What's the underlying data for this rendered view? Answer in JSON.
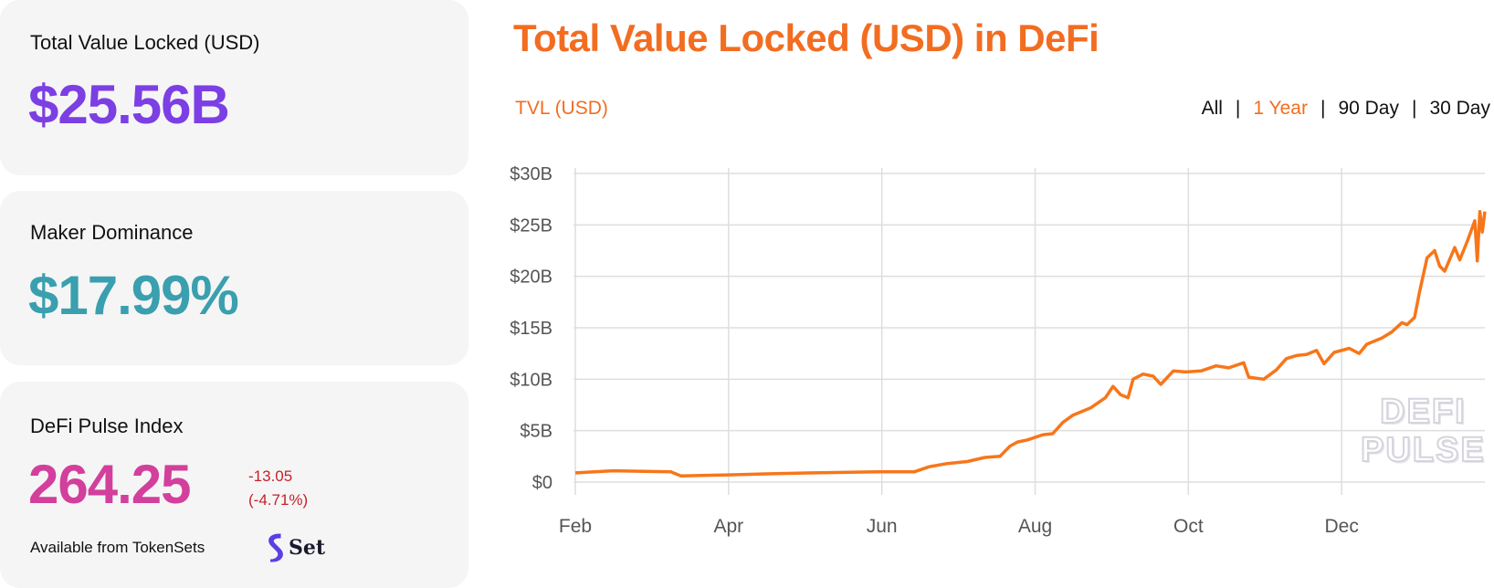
{
  "cards": {
    "tvl": {
      "label": "Total Value Locked (USD)",
      "value": "$25.56B",
      "color": "#7b3fe4"
    },
    "maker": {
      "label": "Maker Dominance",
      "value": "$17.99%",
      "color": "#3a9fae"
    },
    "dpi": {
      "label": "DeFi Pulse Index",
      "value": "264.25",
      "change": "-13.05",
      "change_pct": "(-4.71%)",
      "color": "#d23f9c",
      "available": "Available from TokenSets",
      "set_logo": "Set"
    }
  },
  "header": {
    "title": "Total Value Locked (USD) in DeFi",
    "legend": "TVL (USD)",
    "ranges": [
      "All",
      "1 Year",
      "90 Day",
      "30 Day"
    ],
    "active_range": "1 Year",
    "separator": "|"
  },
  "watermark": [
    "DEFI",
    "PULSE"
  ],
  "chart_data": {
    "type": "line",
    "title": "Total Value Locked (USD) in DeFi",
    "ylabel": "TVL (USD)",
    "xlabel": "",
    "x_unit": "days since Feb 1",
    "xlim": [
      0,
      362
    ],
    "ylim": [
      0,
      30
    ],
    "y_unit": "billion USD",
    "yticks": [
      0,
      5,
      10,
      15,
      20,
      25,
      30
    ],
    "ytick_labels": [
      "$0",
      "$5B",
      "$10B",
      "$15B",
      "$20B",
      "$25B",
      "$30B"
    ],
    "xticks": [
      0,
      61,
      122,
      183,
      244,
      305
    ],
    "xtick_labels": [
      "Feb",
      "Apr",
      "Jun",
      "Aug",
      "Oct",
      "Dec"
    ],
    "grid": true,
    "color": "#f7761a",
    "series": [
      {
        "name": "TVL (USD)",
        "x": [
          0,
          15,
          38,
          42,
          61,
          76,
          95,
          120,
          135,
          141,
          148,
          156,
          163,
          169,
          173,
          176,
          180,
          186,
          190,
          194,
          198,
          205,
          211,
          214,
          217,
          220,
          222,
          226,
          230,
          233,
          238,
          243,
          249,
          255,
          260,
          266,
          268,
          274,
          279,
          283,
          287,
          291,
          295,
          298,
          302,
          308,
          312,
          315,
          321,
          325,
          329,
          331,
          334,
          336,
          339,
          342,
          344,
          346,
          350,
          352,
          355,
          358,
          359,
          360,
          361,
          362
        ],
        "values": [
          0.9,
          1.1,
          1.0,
          0.6,
          0.7,
          0.8,
          0.9,
          1.0,
          1.0,
          1.5,
          1.8,
          2.0,
          2.4,
          2.5,
          3.5,
          3.9,
          4.1,
          4.6,
          4.7,
          5.8,
          6.5,
          7.2,
          8.2,
          9.3,
          8.5,
          8.2,
          10.0,
          10.5,
          10.3,
          9.5,
          10.8,
          10.7,
          10.8,
          11.3,
          11.1,
          11.6,
          10.2,
          10.0,
          10.9,
          12.0,
          12.3,
          12.4,
          12.8,
          11.5,
          12.6,
          13.0,
          12.5,
          13.4,
          14.0,
          14.6,
          15.5,
          15.3,
          16.0,
          18.5,
          21.8,
          22.5,
          21.0,
          20.5,
          22.8,
          21.6,
          23.4,
          25.4,
          21.5,
          26.3,
          24.3,
          26.3
        ]
      }
    ]
  }
}
